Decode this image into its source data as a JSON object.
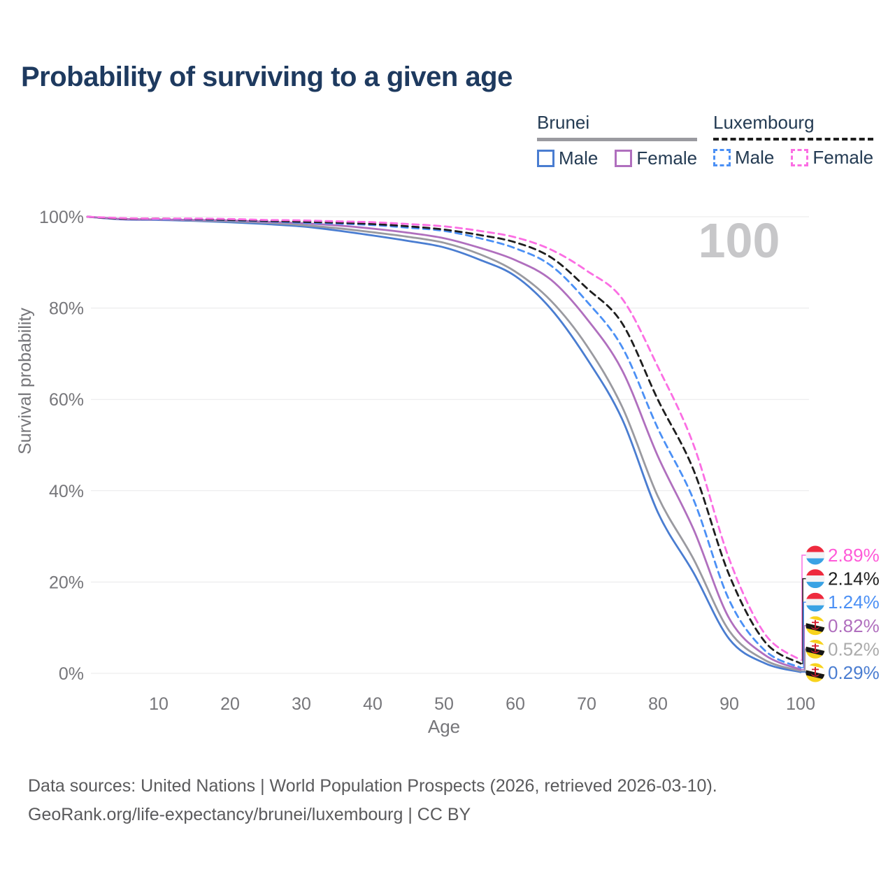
{
  "title": "Probability of surviving to a given age",
  "watermark": "100",
  "colors": {
    "title_text": "#1e3a5f",
    "legend_text": "#243b53",
    "axis_text": "#76767a",
    "gridline": "#e8e8ea",
    "watermark": "#c7c7c9",
    "footer_text": "#5a5a5c",
    "background": "#ffffff"
  },
  "legend": {
    "groups": [
      {
        "name": "Brunei",
        "underline_style": "solid",
        "underline_color": "#9a9aa0",
        "items": [
          {
            "label": "Male",
            "color": "#4a7dd1",
            "dashed": false
          },
          {
            "label": "Female",
            "color": "#b06fbe",
            "dashed": false
          }
        ]
      },
      {
        "name": "Luxembourg",
        "underline_style": "dashed",
        "underline_color": "#1e1e1e",
        "items": [
          {
            "label": "Male",
            "color": "#4b90f5",
            "dashed": true
          },
          {
            "label": "Female",
            "color": "#fb6ee3",
            "dashed": true
          }
        ]
      }
    ]
  },
  "axes": {
    "x": {
      "label": "Age",
      "min": 0,
      "max": 100,
      "ticks": [
        10,
        20,
        30,
        40,
        50,
        60,
        70,
        80,
        90,
        100
      ]
    },
    "y": {
      "label": "Survival probability",
      "min": 0,
      "max": 100,
      "ticks": [
        {
          "value": 0,
          "label": "0%"
        },
        {
          "value": 20,
          "label": "20%"
        },
        {
          "value": 40,
          "label": "40%"
        },
        {
          "value": 60,
          "label": "60%"
        },
        {
          "value": 80,
          "label": "80%"
        },
        {
          "value": 100,
          "label": "100%"
        }
      ]
    }
  },
  "chart_data": {
    "type": "line",
    "title": "Probability of surviving to a given age",
    "xlabel": "Age",
    "ylabel": "Survival probability",
    "xlim": [
      0,
      100
    ],
    "ylim": [
      0,
      100
    ],
    "grid": "horizontal",
    "legend_position": "top-right",
    "x": [
      0,
      5,
      10,
      15,
      20,
      25,
      30,
      35,
      40,
      45,
      50,
      55,
      60,
      65,
      70,
      75,
      80,
      85,
      90,
      95,
      100
    ],
    "series": [
      {
        "name": "Luxembourg Female",
        "country": "Luxembourg",
        "sex": "Female",
        "style": "dashed",
        "color": "#fb6ee3",
        "flag": "luxembourg",
        "end_label": "2.89%",
        "end_label_color": "#ff5ad8",
        "values": [
          100,
          99.7,
          99.6,
          99.6,
          99.5,
          99.3,
          99.2,
          99.0,
          98.8,
          98.4,
          97.9,
          96.9,
          95.5,
          92.8,
          88.2,
          82.0,
          67.1,
          50.0,
          25.0,
          8.6,
          2.89
        ]
      },
      {
        "name": "Luxembourg Both sexes",
        "country": "Luxembourg",
        "sex": "Both",
        "style": "dashed",
        "color": "#1e1e1e",
        "flag": "luxembourg",
        "end_label": "2.14%",
        "end_label_color": "#1e1e1e",
        "values": [
          100,
          99.6,
          99.6,
          99.5,
          99.3,
          99.1,
          98.9,
          98.7,
          98.4,
          97.9,
          97.2,
          96.0,
          94.4,
          91.1,
          84.4,
          76.6,
          59.9,
          44.5,
          21.5,
          6.9,
          2.14
        ]
      },
      {
        "name": "Luxembourg Male",
        "country": "Luxembourg",
        "sex": "Male",
        "style": "dashed",
        "color": "#4b90f5",
        "flag": "luxembourg",
        "end_label": "1.24%",
        "end_label_color": "#4b90f5",
        "values": [
          100,
          99.6,
          99.5,
          99.4,
          99.2,
          99.0,
          98.7,
          98.5,
          98.2,
          97.6,
          96.9,
          95.3,
          93.1,
          89.3,
          81.5,
          71.4,
          53.6,
          38.0,
          16.0,
          5.0,
          1.24
        ]
      },
      {
        "name": "Brunei Female",
        "country": "Brunei",
        "sex": "Female",
        "style": "solid",
        "color": "#b06fbe",
        "flag": "brunei",
        "end_label": "0.82%",
        "end_label_color": "#b06fbe",
        "values": [
          100,
          99.5,
          99.4,
          99.3,
          99.2,
          98.9,
          98.6,
          98.1,
          97.4,
          96.5,
          95.3,
          93.2,
          90.5,
          86.2,
          77.7,
          66.3,
          47.5,
          31.5,
          12.0,
          4.0,
          0.82
        ]
      },
      {
        "name": "Brunei Both sexes",
        "country": "Brunei",
        "sex": "Both",
        "style": "solid",
        "color": "#9a9aa0",
        "flag": "brunei",
        "end_label": "0.52%",
        "end_label_color": "#ababab",
        "values": [
          100,
          99.5,
          99.4,
          99.2,
          99.0,
          98.7,
          98.2,
          97.5,
          96.6,
          95.6,
          94.3,
          91.8,
          88.0,
          81.6,
          71.8,
          58.3,
          38.7,
          25.0,
          9.3,
          2.9,
          0.52
        ]
      },
      {
        "name": "Brunei Male",
        "country": "Brunei",
        "sex": "Male",
        "style": "solid",
        "color": "#4a7dd1",
        "flag": "brunei",
        "end_label": "0.29%",
        "end_label_color": "#4a7dd1",
        "values": [
          100,
          99.4,
          99.3,
          99.1,
          98.8,
          98.4,
          97.9,
          97.0,
          95.9,
          94.7,
          93.3,
          90.6,
          87.0,
          79.8,
          69.0,
          55.6,
          35.2,
          22.0,
          7.5,
          2.2,
          0.29
        ]
      }
    ]
  },
  "flag_colors": {
    "luxembourg": {
      "red": "#ee2a3e",
      "white": "#f2f3f5",
      "blue": "#3aa2e4"
    },
    "brunei": {
      "yellow": "#f8d31d",
      "white": "#ffffff",
      "black": "#161616",
      "red": "#d41f30"
    }
  },
  "footer": {
    "line1": "Data sources: United Nations | World Population Prospects (2026, retrieved 2026-03-10).",
    "line2": "GeoRank.org/life-expectancy/brunei/luxembourg | CC BY"
  }
}
